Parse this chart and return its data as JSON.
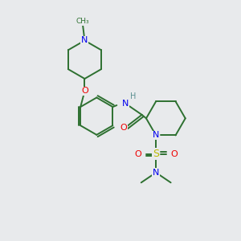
{
  "background_color": "#e8eaec",
  "atom_colors": {
    "C": "#2d7030",
    "N": "#0000ee",
    "O": "#ee0000",
    "S": "#bbbb00",
    "H": "#5a9090"
  },
  "bond_color": "#2d7030",
  "figsize": [
    3.0,
    3.0
  ],
  "dpi": 100,
  "lw": 1.4
}
